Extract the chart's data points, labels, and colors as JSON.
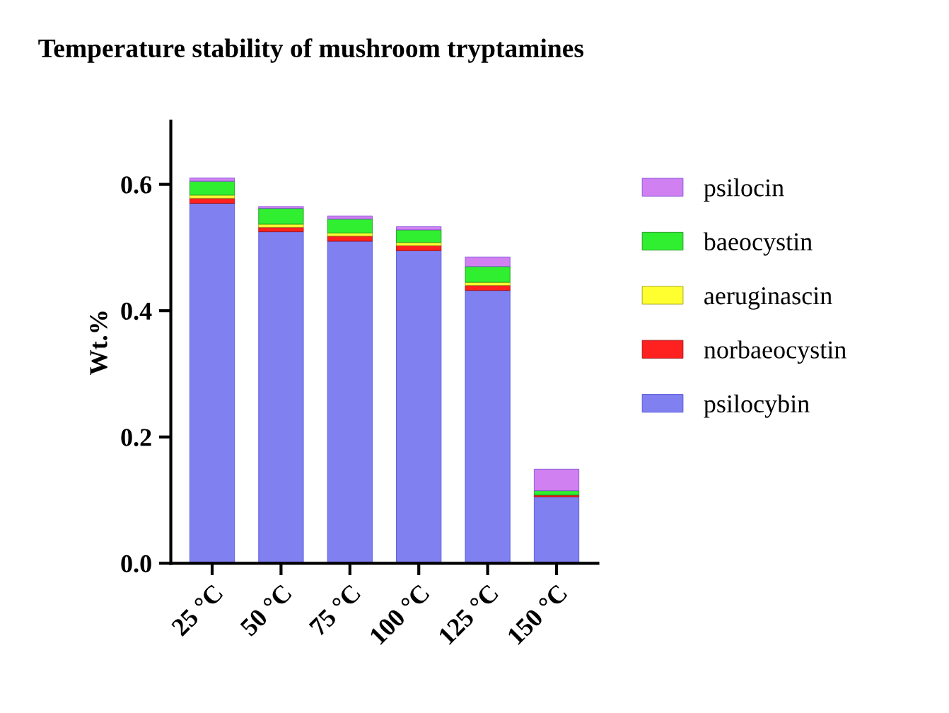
{
  "chart_data": {
    "type": "bar",
    "title": "Temperature stability of mushroom tryptamines",
    "ylabel": "Wt.%",
    "categories": [
      "25 °C",
      "50 °C",
      "75 °C",
      "100 °C",
      "125 °C",
      "150 °C"
    ],
    "stacked": true,
    "series": [
      {
        "name": "psilocybin",
        "color": "#8080f0",
        "values": [
          0.57,
          0.525,
          0.51,
          0.495,
          0.432,
          0.105
        ]
      },
      {
        "name": "norbaeocystin",
        "color": "#ff2020",
        "values": [
          0.008,
          0.007,
          0.008,
          0.008,
          0.008,
          0.003
        ]
      },
      {
        "name": "aeruginascin",
        "color": "#ffff30",
        "values": [
          0.005,
          0.005,
          0.005,
          0.005,
          0.005,
          null
        ]
      },
      {
        "name": "baeocystin",
        "color": "#30ee30",
        "values": [
          0.022,
          0.025,
          0.022,
          0.02,
          0.025,
          0.007
        ]
      },
      {
        "name": "psilocin",
        "color": "#d080f0",
        "values": [
          0.005,
          0.003,
          0.005,
          0.005,
          0.015,
          0.034
        ]
      }
    ],
    "ylim": [
      0,
      0.7
    ],
    "yticks": [
      {
        "value": 0,
        "label": "0.0"
      },
      {
        "value": 0.2,
        "label": "0.2"
      },
      {
        "value": 0.4,
        "label": "0.4"
      },
      {
        "value": 0.6,
        "label": "0.6"
      }
    ],
    "grid": false,
    "legend": "right"
  }
}
